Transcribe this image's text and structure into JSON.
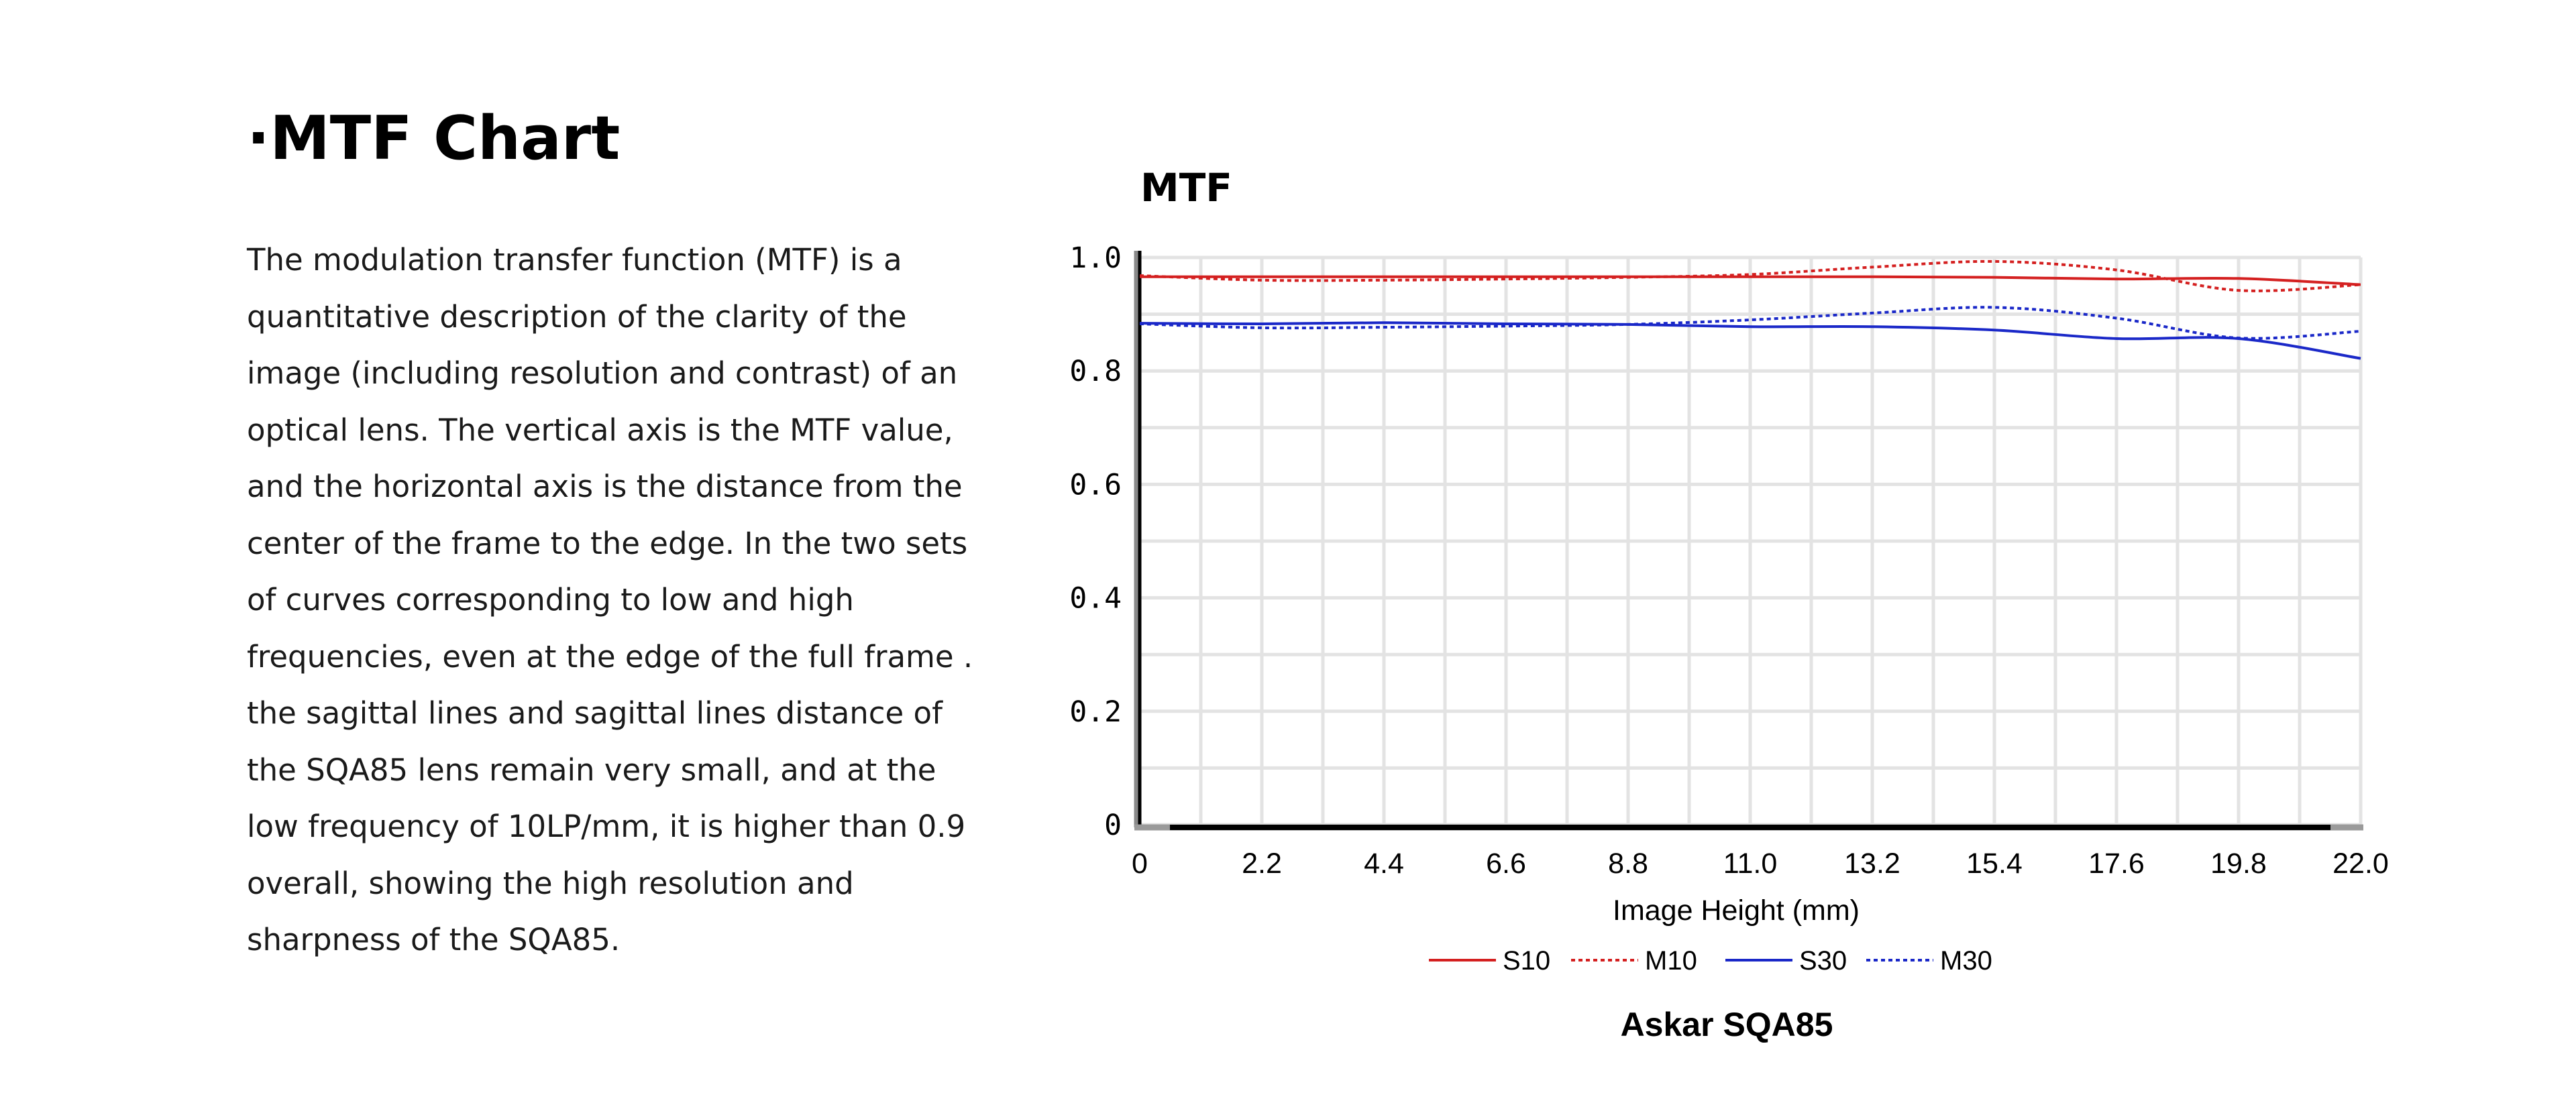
{
  "section": {
    "heading": "·MTF Chart",
    "description": "The modulation transfer function (MTF) is a quantitative description of the clarity of the image (including resolution and contrast) of an optical lens. The vertical axis is the MTF value, and the horizontal axis is the distance from the center of the frame to the edge. In the two sets of curves corresponding to low and high frequencies, even at the edge of the full frame . the sagittal lines and sagittal lines distance of the SQA85 lens remain very small, and at the low frequency of 10LP/mm, it is higher than 0.9 overall, showing the high resolution and sharpness of the SQA85."
  },
  "chart_data": {
    "type": "line",
    "title": "MTF",
    "subtitle": "Askar SQA85",
    "xlabel": "Image Height (mm)",
    "ylabel": "",
    "xlim": [
      0,
      22.0
    ],
    "ylim": [
      0,
      1.0
    ],
    "x_ticks": [
      "0",
      "2.2",
      "4.4",
      "6.6",
      "8.8",
      "11.0",
      "13.2",
      "15.4",
      "17.6",
      "19.8",
      "22.0"
    ],
    "y_ticks": [
      "0",
      "0.2",
      "0.4",
      "0.6",
      "0.8",
      "1.0"
    ],
    "grid": true,
    "legend_position": "bottom",
    "x": [
      0,
      2.2,
      4.4,
      6.6,
      8.8,
      11.0,
      13.2,
      15.4,
      17.6,
      19.8,
      22.0
    ],
    "series": [
      {
        "name": "S10",
        "color": "#d42020",
        "style": "solid",
        "values": [
          0.966,
          0.966,
          0.966,
          0.966,
          0.966,
          0.966,
          0.966,
          0.965,
          0.962,
          0.963,
          0.952
        ]
      },
      {
        "name": "M10",
        "color": "#d42020",
        "style": "dotted",
        "values": [
          0.968,
          0.96,
          0.96,
          0.962,
          0.965,
          0.97,
          0.983,
          0.993,
          0.978,
          0.942,
          0.952
        ]
      },
      {
        "name": "S30",
        "color": "#1a28c8",
        "style": "solid",
        "values": [
          0.884,
          0.883,
          0.885,
          0.883,
          0.882,
          0.878,
          0.878,
          0.872,
          0.857,
          0.857,
          0.822
        ]
      },
      {
        "name": "M30",
        "color": "#1a28c8",
        "style": "dotted",
        "values": [
          0.883,
          0.876,
          0.877,
          0.879,
          0.882,
          0.89,
          0.902,
          0.912,
          0.893,
          0.858,
          0.87
        ]
      }
    ]
  }
}
